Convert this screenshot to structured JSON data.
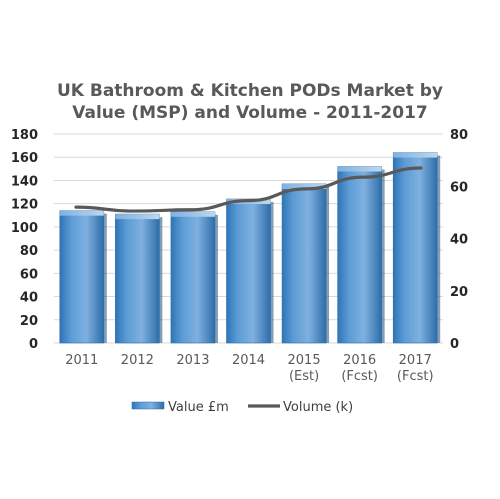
{
  "chart_data": {
    "type": "bar",
    "title": [
      "UK Bathroom & Kitchen PODs Market by",
      "Value (MSP) and Volume - 2011-2017"
    ],
    "categories": [
      [
        "2011"
      ],
      [
        "2012"
      ],
      [
        "2013"
      ],
      [
        "2014"
      ],
      [
        "2015",
        "(Est)"
      ],
      [
        "2016",
        "(Fcst)"
      ],
      [
        "2017",
        "(Fcst)"
      ]
    ],
    "series": [
      {
        "name": "Value £m",
        "type": "bar",
        "axis": "left",
        "values": [
          114,
          111,
          113,
          124,
          137,
          152,
          164
        ]
      },
      {
        "name": "Volume (k)",
        "type": "line",
        "axis": "right",
        "values": [
          52,
          50.5,
          51,
          54.5,
          59,
          63.5,
          67
        ]
      }
    ],
    "y_left": {
      "ylim": [
        0,
        180
      ],
      "ticks": [
        0,
        20,
        40,
        60,
        80,
        100,
        120,
        140,
        160,
        180
      ]
    },
    "y_right": {
      "ylim": [
        0,
        80
      ],
      "ticks": [
        0,
        20,
        40,
        60,
        80
      ]
    },
    "grid": true,
    "legend_position": "bottom",
    "colors": {
      "bar": "#5B9BD5",
      "bar_dark": "#2E75B6",
      "bar_light": "#9DC3E6",
      "line": "#595959",
      "grid": "#D9D9D9"
    }
  }
}
